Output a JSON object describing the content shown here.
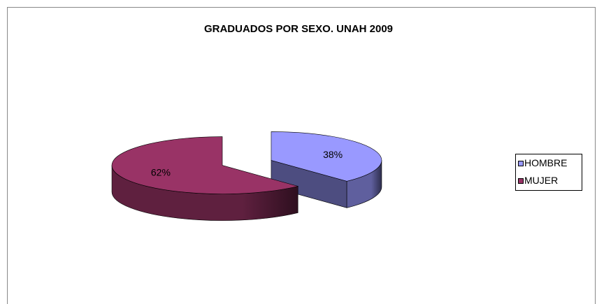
{
  "chart_data": {
    "type": "pie",
    "title": "GRADUADOS POR SEXO. UNAH 2009",
    "categories": [
      "HOMBRE",
      "MUJER"
    ],
    "values": [
      38,
      62
    ],
    "value_labels": [
      "38%",
      "62%"
    ],
    "colors": [
      "#9999ff",
      "#993366"
    ],
    "legend": "right"
  }
}
